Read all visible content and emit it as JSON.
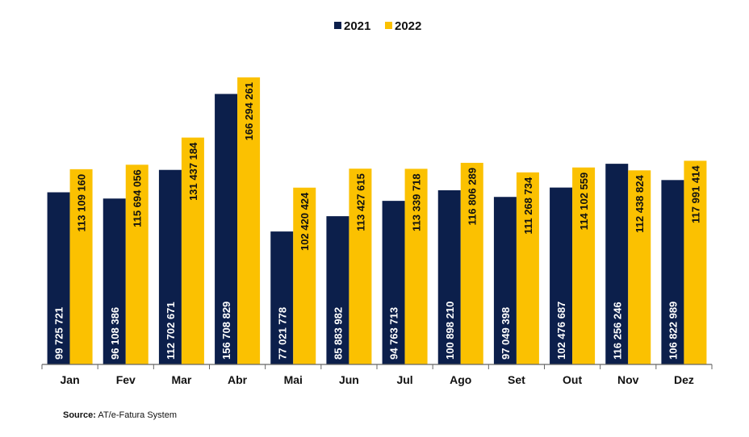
{
  "colors": {
    "series_2021": "#0c1f4b",
    "series_2022": "#fbc101",
    "axis": "#666666"
  },
  "chart_data": {
    "type": "bar",
    "categories": [
      "Jan",
      "Fev",
      "Mar",
      "Abr",
      "Mai",
      "Jun",
      "Jul",
      "Ago",
      "Set",
      "Out",
      "Nov",
      "Dez"
    ],
    "series": [
      {
        "name": "2021",
        "values": [
          99725721,
          96108386,
          112702671,
          156708829,
          77021778,
          85883982,
          94763713,
          100898210,
          97049398,
          102476687,
          116256246,
          106822989
        ],
        "labels": [
          "99 725 721",
          "96 108 386",
          "112 702 671",
          "156 708 829",
          "77 021 778",
          "85 883 982",
          "94 763 713",
          "100 898 210",
          "97 049 398",
          "102 476 687",
          "116 256 246",
          "106 822 989"
        ]
      },
      {
        "name": "2022",
        "values": [
          113109160,
          115694056,
          131437184,
          166294261,
          102420424,
          113427615,
          113339718,
          116806289,
          111268734,
          114102559,
          112438824,
          117991414
        ],
        "labels": [
          "113 109 160",
          "115 694 056",
          "131 437 184",
          "166 294 261",
          "102 420 424",
          "113 427 615",
          "113 339 718",
          "116 806 289",
          "111 268 734",
          "114 102 559",
          "112 438 824",
          "117 991 414"
        ]
      }
    ],
    "ylim": [
      0,
      170000000
    ],
    "grid": false,
    "legend_position": "top-center",
    "data_labels": "inside-bar-vertical"
  },
  "source": {
    "label": "Source:",
    "text": "AT/e-Fatura System"
  }
}
